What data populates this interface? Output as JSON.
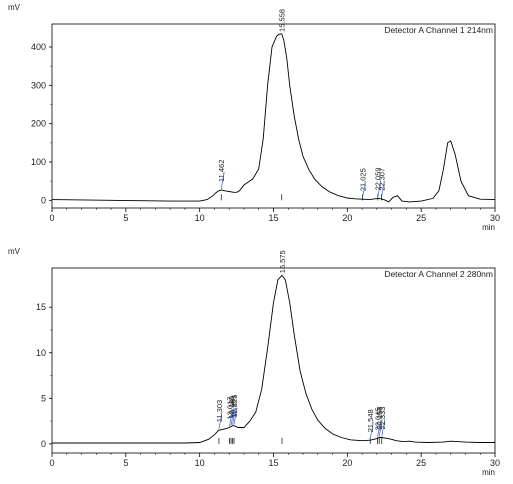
{
  "chart_data": [
    {
      "type": "line",
      "ylabel": "mV",
      "xlabel": "min",
      "legend": "Detector A Channel 1 214nm",
      "legend_position": "top-right",
      "grid": false,
      "xlim": [
        0,
        30
      ],
      "ylim": [
        -20,
        460
      ],
      "x_ticks": [
        0,
        5,
        10,
        15,
        20,
        25,
        30
      ],
      "y_ticks": [
        0,
        100,
        200,
        300,
        400
      ],
      "series": [
        {
          "x": [
            0,
            2,
            4,
            6,
            8,
            9,
            10,
            10.5,
            10.9,
            11.1,
            11.3,
            11.462,
            11.7,
            12,
            12.3,
            12.5,
            12.7,
            13,
            13.3,
            13.6,
            14,
            14.3,
            14.6,
            14.9,
            15.2,
            15.4,
            15.558,
            15.7,
            15.9,
            16.1,
            16.4,
            16.7,
            17,
            17.4,
            17.8,
            18.3,
            18.8,
            19.4,
            20,
            20.5,
            21.025,
            21.5,
            22.059,
            22.307,
            22.6,
            22.8,
            23.1,
            23.4,
            23.7,
            24.2,
            25,
            25.8,
            26.2,
            26.5,
            26.8,
            27,
            27.3,
            27.7,
            28.2,
            29,
            30
          ],
          "y": [
            2,
            1,
            0,
            -1,
            -2,
            -2,
            -2,
            2,
            12,
            20,
            25,
            27,
            25,
            23,
            21,
            21,
            25,
            40,
            48,
            56,
            82,
            160,
            300,
            400,
            428,
            434,
            434,
            418,
            370,
            300,
            220,
            160,
            115,
            80,
            55,
            35,
            22,
            12,
            6,
            4,
            3,
            2,
            5,
            4,
            0,
            -4,
            8,
            12,
            -2,
            -4,
            -2,
            5,
            25,
            80,
            150,
            155,
            120,
            50,
            12,
            3,
            2
          ]
        }
      ],
      "annotations": [
        "11.462",
        "15.558",
        "21.025",
        "22.059",
        "22.307"
      ]
    },
    {
      "type": "line",
      "ylabel": "mV",
      "xlabel": "min",
      "legend": "Detector A Channel 2 280nm",
      "legend_position": "top-right",
      "grid": false,
      "xlim": [
        0,
        30
      ],
      "ylim": [
        -1,
        19.3
      ],
      "x_ticks": [
        0,
        5,
        10,
        15,
        20,
        25,
        30
      ],
      "y_ticks": [
        0,
        5,
        10,
        15
      ],
      "series": [
        {
          "x": [
            0,
            3,
            6,
            9,
            10,
            10.6,
            11,
            11.303,
            11.6,
            11.8,
            12.017,
            12.125,
            12.231,
            12.325,
            12.6,
            13,
            13.4,
            13.8,
            14.2,
            14.6,
            15,
            15.3,
            15.575,
            15.8,
            16.1,
            16.4,
            16.8,
            17.2,
            17.6,
            18,
            18.5,
            19,
            19.6,
            20.2,
            21,
            21.548,
            22.045,
            22.158,
            22.333,
            22.7,
            23,
            23.3,
            23.8,
            24.2,
            24.6,
            25.5,
            26.5,
            27,
            28,
            29,
            30
          ],
          "y": [
            0.1,
            0.1,
            0.1,
            0.1,
            0.15,
            0.5,
            1.0,
            1.5,
            1.6,
            1.7,
            1.8,
            1.9,
            2.0,
            2.0,
            1.8,
            1.8,
            2.5,
            3.5,
            6.0,
            10.5,
            15.5,
            18.0,
            18.5,
            18.0,
            15.5,
            12.0,
            8.0,
            5.5,
            3.8,
            2.6,
            1.7,
            1.1,
            0.7,
            0.45,
            0.35,
            0.4,
            0.6,
            0.7,
            0.7,
            0.6,
            0.5,
            0.35,
            0.25,
            0.3,
            0.2,
            0.15,
            0.2,
            0.3,
            0.2,
            0.15,
            0.15
          ]
        }
      ],
      "annotations": [
        "11.303",
        "12.017",
        "12.125",
        "12.231",
        "12.325",
        "15.575",
        "21.548",
        "22.045",
        "22.158",
        "22.333"
      ]
    }
  ]
}
